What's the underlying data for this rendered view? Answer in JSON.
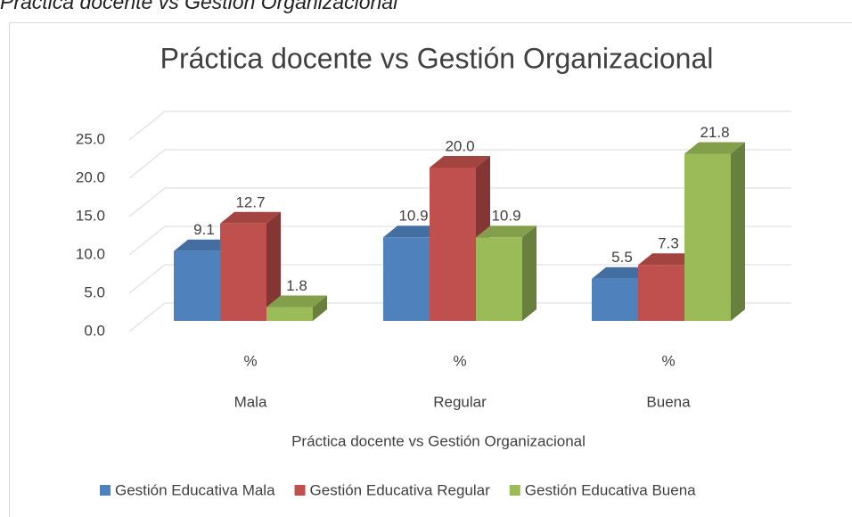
{
  "caption": "Práctica docente vs Gestión Organizacional",
  "chart_data": {
    "type": "bar",
    "title": "Práctica docente vs Gestión Organizacional",
    "x_label": "Práctica docente vs Gestión Organizacional",
    "categories": [
      "Mala",
      "Regular",
      "Buena"
    ],
    "subcategories": [
      "%",
      "%",
      "%"
    ],
    "series": [
      {
        "name": "Gestión Educativa Mala",
        "color": "#4f81bd",
        "values": [
          9.1,
          10.9,
          5.5
        ],
        "value_labels": [
          "9.1",
          "10.9",
          "5.5"
        ]
      },
      {
        "name": "Gestión Educativa Regular",
        "color": "#c0504d",
        "values": [
          12.7,
          20.0,
          7.3
        ],
        "value_labels": [
          "12.7",
          "20.0",
          "7.3"
        ]
      },
      {
        "name": "Gestión Educativa Buena",
        "color": "#9bbb59",
        "values": [
          1.8,
          10.9,
          21.8
        ],
        "value_labels": [
          "1.8",
          "10.9",
          "21.8"
        ]
      }
    ],
    "ylim": [
      0,
      25
    ],
    "yticks": [
      {
        "value": 0,
        "label": "0.0"
      },
      {
        "value": 5,
        "label": "5.0"
      },
      {
        "value": 10,
        "label": "10.0"
      },
      {
        "value": 15,
        "label": "15.0"
      },
      {
        "value": 20,
        "label": "20.0"
      },
      {
        "value": 25,
        "label": "25.0"
      }
    ],
    "grid": true,
    "legend": "bottom"
  }
}
